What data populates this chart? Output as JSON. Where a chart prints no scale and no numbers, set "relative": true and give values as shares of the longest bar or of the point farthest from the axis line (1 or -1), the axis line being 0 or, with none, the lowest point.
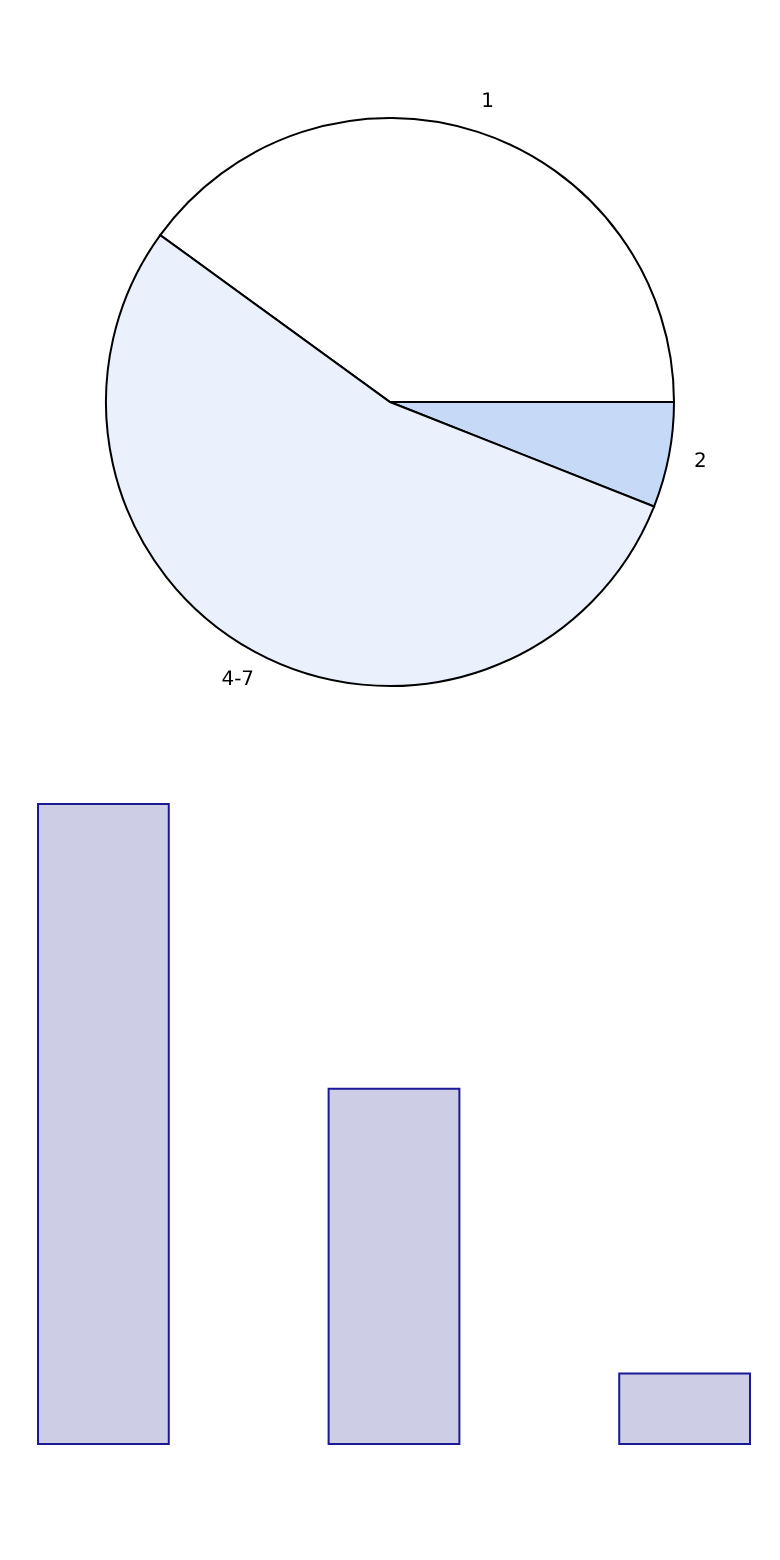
{
  "chart_data": [
    {
      "type": "pie",
      "categories": [
        "1",
        "2",
        "4-7"
      ],
      "values": [
        40,
        6,
        54
      ],
      "colors": [
        "#ffffff",
        "#c6d9f7",
        "#eaf1fd"
      ]
    },
    {
      "type": "bar",
      "categories": [
        null,
        null,
        null
      ],
      "values": [
        1,
        0.555,
        0.11
      ],
      "color": "#cdcde5",
      "relative": true
    }
  ]
}
